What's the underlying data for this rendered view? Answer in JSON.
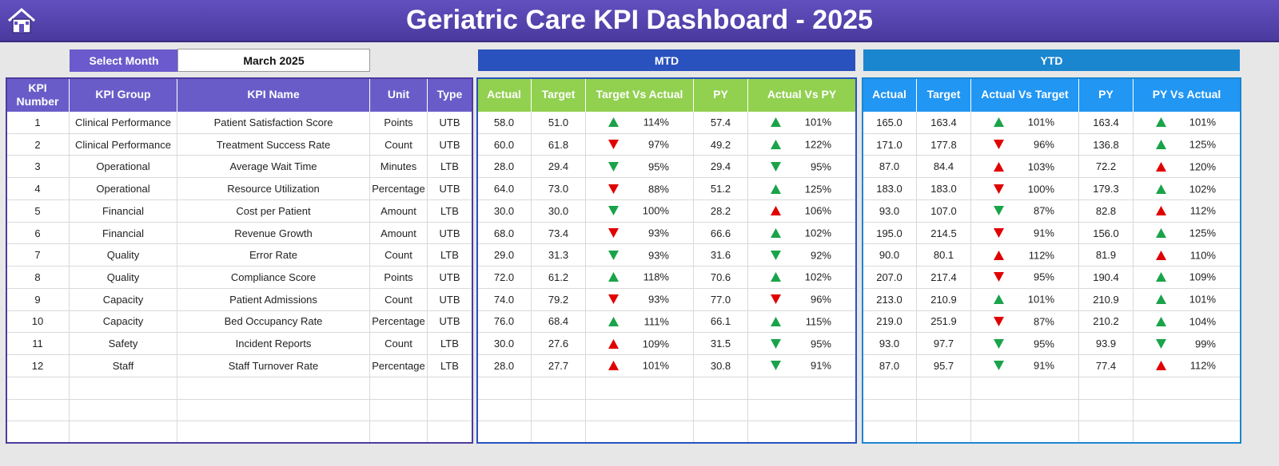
{
  "header": {
    "title": "Geriatric Care KPI Dashboard - 2025"
  },
  "select": {
    "label": "Select Month",
    "value": "March 2025"
  },
  "kpi_table": {
    "columns": [
      "KPI Number",
      "KPI Group",
      "KPI Name",
      "Unit",
      "Type"
    ],
    "rows": [
      [
        1,
        "Clinical Performance",
        "Patient Satisfaction Score",
        "Points",
        "UTB"
      ],
      [
        2,
        "Clinical Performance",
        "Treatment Success Rate",
        "Count",
        "UTB"
      ],
      [
        3,
        "Operational",
        "Average Wait Time",
        "Minutes",
        "LTB"
      ],
      [
        4,
        "Operational",
        "Resource Utilization",
        "Percentage",
        "UTB"
      ],
      [
        5,
        "Financial",
        "Cost per Patient",
        "Amount",
        "LTB"
      ],
      [
        6,
        "Financial",
        "Revenue Growth",
        "Amount",
        "UTB"
      ],
      [
        7,
        "Quality",
        "Error Rate",
        "Count",
        "LTB"
      ],
      [
        8,
        "Quality",
        "Compliance Score",
        "Points",
        "UTB"
      ],
      [
        9,
        "Capacity",
        "Patient Admissions",
        "Count",
        "UTB"
      ],
      [
        10,
        "Capacity",
        "Bed Occupancy Rate",
        "Percentage",
        "UTB"
      ],
      [
        11,
        "Safety",
        "Incident Reports",
        "Count",
        "LTB"
      ],
      [
        12,
        "Staff",
        "Staff Turnover Rate",
        "Percentage",
        "LTB"
      ]
    ]
  },
  "mtd": {
    "title": "MTD",
    "columns": [
      "Actual",
      "Target",
      "Target Vs Actual",
      "PY",
      "Actual Vs PY"
    ],
    "rows": [
      [
        "58.0",
        "51.0",
        {
          "text": "114%",
          "dir": "up",
          "color": "#1aa34a"
        },
        "57.4",
        {
          "text": "101%",
          "dir": "up",
          "color": "#1aa34a"
        }
      ],
      [
        "60.0",
        "61.8",
        {
          "text": "97%",
          "dir": "down",
          "color": "#e00000"
        },
        "49.2",
        {
          "text": "122%",
          "dir": "up",
          "color": "#1aa34a"
        }
      ],
      [
        "28.0",
        "29.4",
        {
          "text": "95%",
          "dir": "down",
          "color": "#1aa34a"
        },
        "29.4",
        {
          "text": "95%",
          "dir": "down",
          "color": "#1aa34a"
        }
      ],
      [
        "64.0",
        "73.0",
        {
          "text": "88%",
          "dir": "down",
          "color": "#e00000"
        },
        "51.2",
        {
          "text": "125%",
          "dir": "up",
          "color": "#1aa34a"
        }
      ],
      [
        "30.0",
        "30.0",
        {
          "text": "100%",
          "dir": "down",
          "color": "#1aa34a"
        },
        "28.2",
        {
          "text": "106%",
          "dir": "up",
          "color": "#e00000"
        }
      ],
      [
        "68.0",
        "73.4",
        {
          "text": "93%",
          "dir": "down",
          "color": "#e00000"
        },
        "66.6",
        {
          "text": "102%",
          "dir": "up",
          "color": "#1aa34a"
        }
      ],
      [
        "29.0",
        "31.3",
        {
          "text": "93%",
          "dir": "down",
          "color": "#1aa34a"
        },
        "31.6",
        {
          "text": "92%",
          "dir": "down",
          "color": "#1aa34a"
        }
      ],
      [
        "72.0",
        "61.2",
        {
          "text": "118%",
          "dir": "up",
          "color": "#1aa34a"
        },
        "70.6",
        {
          "text": "102%",
          "dir": "up",
          "color": "#1aa34a"
        }
      ],
      [
        "74.0",
        "79.2",
        {
          "text": "93%",
          "dir": "down",
          "color": "#e00000"
        },
        "77.0",
        {
          "text": "96%",
          "dir": "down",
          "color": "#e00000"
        }
      ],
      [
        "76.0",
        "68.4",
        {
          "text": "111%",
          "dir": "up",
          "color": "#1aa34a"
        },
        "66.1",
        {
          "text": "115%",
          "dir": "up",
          "color": "#1aa34a"
        }
      ],
      [
        "30.0",
        "27.6",
        {
          "text": "109%",
          "dir": "up",
          "color": "#e00000"
        },
        "31.5",
        {
          "text": "95%",
          "dir": "down",
          "color": "#1aa34a"
        }
      ],
      [
        "28.0",
        "27.7",
        {
          "text": "101%",
          "dir": "up",
          "color": "#e00000"
        },
        "30.8",
        {
          "text": "91%",
          "dir": "down",
          "color": "#1aa34a"
        }
      ]
    ]
  },
  "ytd": {
    "title": "YTD",
    "columns": [
      "Actual",
      "Target",
      "Actual Vs Target",
      "PY",
      "PY Vs Actual"
    ],
    "rows": [
      [
        "165.0",
        "163.4",
        {
          "text": "101%",
          "dir": "up",
          "color": "#1aa34a"
        },
        "163.4",
        {
          "text": "101%",
          "dir": "up",
          "color": "#1aa34a"
        }
      ],
      [
        "171.0",
        "177.8",
        {
          "text": "96%",
          "dir": "down",
          "color": "#e00000"
        },
        "136.8",
        {
          "text": "125%",
          "dir": "up",
          "color": "#1aa34a"
        }
      ],
      [
        "87.0",
        "84.4",
        {
          "text": "103%",
          "dir": "up",
          "color": "#e00000"
        },
        "72.2",
        {
          "text": "120%",
          "dir": "up",
          "color": "#e00000"
        }
      ],
      [
        "183.0",
        "183.0",
        {
          "text": "100%",
          "dir": "down",
          "color": "#e00000"
        },
        "179.3",
        {
          "text": "102%",
          "dir": "up",
          "color": "#1aa34a"
        }
      ],
      [
        "93.0",
        "107.0",
        {
          "text": "87%",
          "dir": "down",
          "color": "#1aa34a"
        },
        "82.8",
        {
          "text": "112%",
          "dir": "up",
          "color": "#e00000"
        }
      ],
      [
        "195.0",
        "214.5",
        {
          "text": "91%",
          "dir": "down",
          "color": "#e00000"
        },
        "156.0",
        {
          "text": "125%",
          "dir": "up",
          "color": "#1aa34a"
        }
      ],
      [
        "90.0",
        "80.1",
        {
          "text": "112%",
          "dir": "up",
          "color": "#e00000"
        },
        "81.9",
        {
          "text": "110%",
          "dir": "up",
          "color": "#e00000"
        }
      ],
      [
        "207.0",
        "217.4",
        {
          "text": "95%",
          "dir": "down",
          "color": "#e00000"
        },
        "190.4",
        {
          "text": "109%",
          "dir": "up",
          "color": "#1aa34a"
        }
      ],
      [
        "213.0",
        "210.9",
        {
          "text": "101%",
          "dir": "up",
          "color": "#1aa34a"
        },
        "210.9",
        {
          "text": "101%",
          "dir": "up",
          "color": "#1aa34a"
        }
      ],
      [
        "219.0",
        "251.9",
        {
          "text": "87%",
          "dir": "down",
          "color": "#e00000"
        },
        "210.2",
        {
          "text": "104%",
          "dir": "up",
          "color": "#1aa34a"
        }
      ],
      [
        "93.0",
        "97.7",
        {
          "text": "95%",
          "dir": "down",
          "color": "#1aa34a"
        },
        "93.9",
        {
          "text": "99%",
          "dir": "down",
          "color": "#1aa34a"
        }
      ],
      [
        "87.0",
        "95.7",
        {
          "text": "91%",
          "dir": "down",
          "color": "#1aa34a"
        },
        "77.4",
        {
          "text": "112%",
          "dir": "up",
          "color": "#e00000"
        }
      ]
    ]
  }
}
